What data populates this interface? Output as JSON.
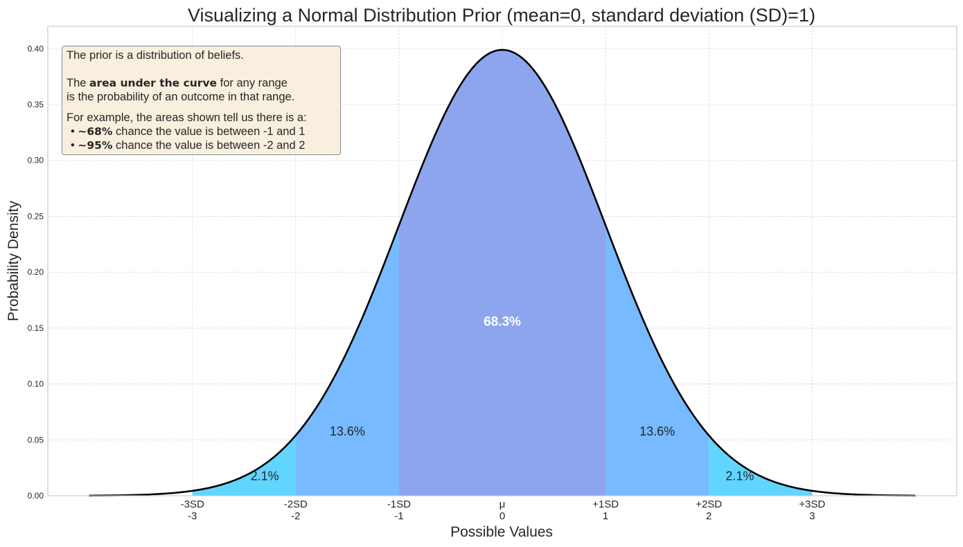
{
  "chart_data": {
    "type": "area",
    "title": "Visualizing a Normal Distribution Prior (mean=0, standard deviation (SD)=1)",
    "xlabel": "Possible Values",
    "ylabel": "Probability Density",
    "xlim": [
      -4.4,
      4.4
    ],
    "ylim": [
      0,
      0.42
    ],
    "grid": true,
    "curve": {
      "distribution": "normal",
      "mean": 0,
      "sd": 1,
      "x_range": [
        -4,
        4
      ],
      "color": "#000000"
    },
    "x_ticks": [
      {
        "value": -3,
        "label_top": "-3SD",
        "label_bottom": "-3"
      },
      {
        "value": -2,
        "label_top": "-2SD",
        "label_bottom": "-2"
      },
      {
        "value": -1,
        "label_top": "-1SD",
        "label_bottom": "-1"
      },
      {
        "value": 0,
        "label_top": "μ",
        "label_bottom": "0"
      },
      {
        "value": 1,
        "label_top": "+1SD",
        "label_bottom": "1"
      },
      {
        "value": 2,
        "label_top": "+2SD",
        "label_bottom": "2"
      },
      {
        "value": 3,
        "label_top": "+3SD",
        "label_bottom": "3"
      }
    ],
    "y_ticks": [
      "0.00",
      "0.05",
      "0.10",
      "0.15",
      "0.20",
      "0.25",
      "0.30",
      "0.35",
      "0.40"
    ],
    "regions": [
      {
        "from": -3,
        "to": -2,
        "color": "#62d5fe",
        "label": "2.1%",
        "label_x": -2.3,
        "label_y": 0.014
      },
      {
        "from": -2,
        "to": -1,
        "color": "#77baff",
        "label": "13.6%",
        "label_x": -1.5,
        "label_y": 0.054
      },
      {
        "from": -1,
        "to": 1,
        "color": "#8ca5ee",
        "label": "68.3%",
        "label_x": 0,
        "label_y": 0.152,
        "label_color": "#ffffff",
        "label_bold": true
      },
      {
        "from": 1,
        "to": 2,
        "color": "#77baff",
        "label": "13.6%",
        "label_x": 1.5,
        "label_y": 0.054
      },
      {
        "from": 2,
        "to": 3,
        "color": "#62d5fe",
        "label": "2.1%",
        "label_x": 2.3,
        "label_y": 0.014
      }
    ]
  },
  "infobox": {
    "line1": "The prior is a distribution of beliefs.",
    "line2_pre": "The ",
    "line2_bold": "area under the curve",
    "line2_post": " for any range",
    "line3": "is the probability of an outcome in that range.",
    "line4": "For example, the areas shown tell us there is a:",
    "bullet1_bold": "~68%",
    "bullet1_text": " chance the value is between -1 and 1",
    "bullet2_bold": "~95%",
    "bullet2_text": " chance the value is between -2 and 2"
  }
}
